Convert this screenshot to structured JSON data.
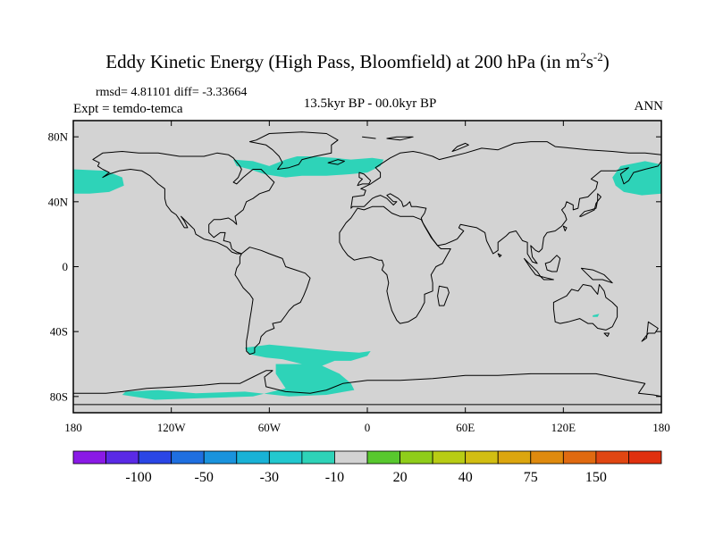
{
  "title": {
    "main": "Eddy Kinetic Energy (High Pass, Bloomfield) at 200 hPa (in m",
    "sup1": "2",
    "mid": "s",
    "sup2": "-2",
    "close": ")"
  },
  "stats_line": "rmsd= 4.81101 diff= -3.33664",
  "expt_line": "Expt = temdo-temca",
  "period": "13.5kyr BP - 00.0kyr BP",
  "season": "ANN",
  "map": {
    "projection": "cylindrical-equidistant",
    "lon_range": [
      -180,
      180
    ],
    "lat_range": [
      -90,
      90
    ],
    "ocean_color": "#ffffff",
    "land_and_neutral_color": "#d3d3d3",
    "anomaly_color": "#2ed3b8",
    "lat_ticks": [
      {
        "lat": 80,
        "label": "80N"
      },
      {
        "lat": 40,
        "label": "40N"
      },
      {
        "lat": 0,
        "label": "0"
      },
      {
        "lat": -40,
        "label": "40S"
      },
      {
        "lat": -80,
        "label": "80S"
      }
    ],
    "lon_ticks": [
      {
        "lon": -180,
        "label": "180"
      },
      {
        "lon": -120,
        "label": "120W"
      },
      {
        "lon": -60,
        "label": "60W"
      },
      {
        "lon": 0,
        "label": "0"
      },
      {
        "lon": 60,
        "label": "60E"
      },
      {
        "lon": 120,
        "label": "120E"
      },
      {
        "lon": 180,
        "label": "180"
      }
    ]
  },
  "colorbar": {
    "colors": [
      "#8a1ae6",
      "#5a2ae6",
      "#2a46e6",
      "#1f6fe0",
      "#1a93dd",
      "#19b2d6",
      "#22c8cf",
      "#2ed3b8",
      "#d3d3d3",
      "#58c82e",
      "#8fcd1a",
      "#b8cc14",
      "#d2be12",
      "#dca60f",
      "#df8a0e",
      "#e06a10",
      "#e04612",
      "#e0300f"
    ],
    "labels": [
      {
        "after_box": 2,
        "text": "-100"
      },
      {
        "after_box": 4,
        "text": "-50"
      },
      {
        "after_box": 6,
        "text": "-30"
      },
      {
        "after_box": 8,
        "text": "-10"
      },
      {
        "after_box": 10,
        "text": "20"
      },
      {
        "after_box": 12,
        "text": "40"
      },
      {
        "after_box": 14,
        "text": "75"
      },
      {
        "after_box": 16,
        "text": "150"
      }
    ]
  }
}
